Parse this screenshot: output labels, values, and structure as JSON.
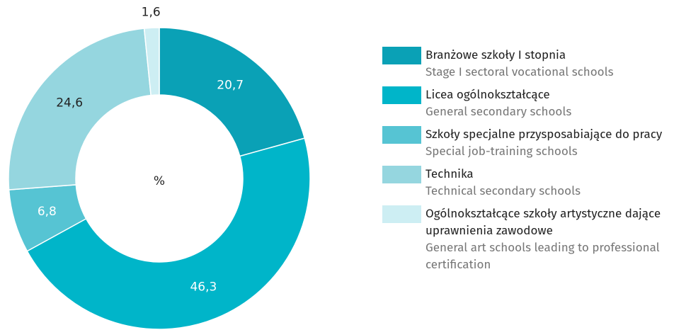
{
  "chart_data": {
    "type": "donut",
    "center_label": "%",
    "categories": [
      "Branżowe szkoły I stopnia",
      "Licea ogólnokształcące",
      "Szkoły specjalne przysposabiające do pracy",
      "Technika",
      "Ogólnokształcące szkoły artystyczne dające uprawnienia zawodowe"
    ],
    "categories_en": [
      "Stage I sectoral vocational schools",
      "General secondary schools",
      "Special job-training schools",
      "Technical secondary schools",
      "General art schools leading to professional certification"
    ],
    "values": [
      20.7,
      46.3,
      6.8,
      24.6,
      1.6
    ],
    "value_labels": [
      "20,7",
      "46,3",
      "6,8",
      "24,6",
      "1,6"
    ],
    "colors": [
      "#0aa1b6",
      "#00b5c9",
      "#56c4d3",
      "#95d6df",
      "#cdeef3"
    ],
    "legend": "right"
  }
}
